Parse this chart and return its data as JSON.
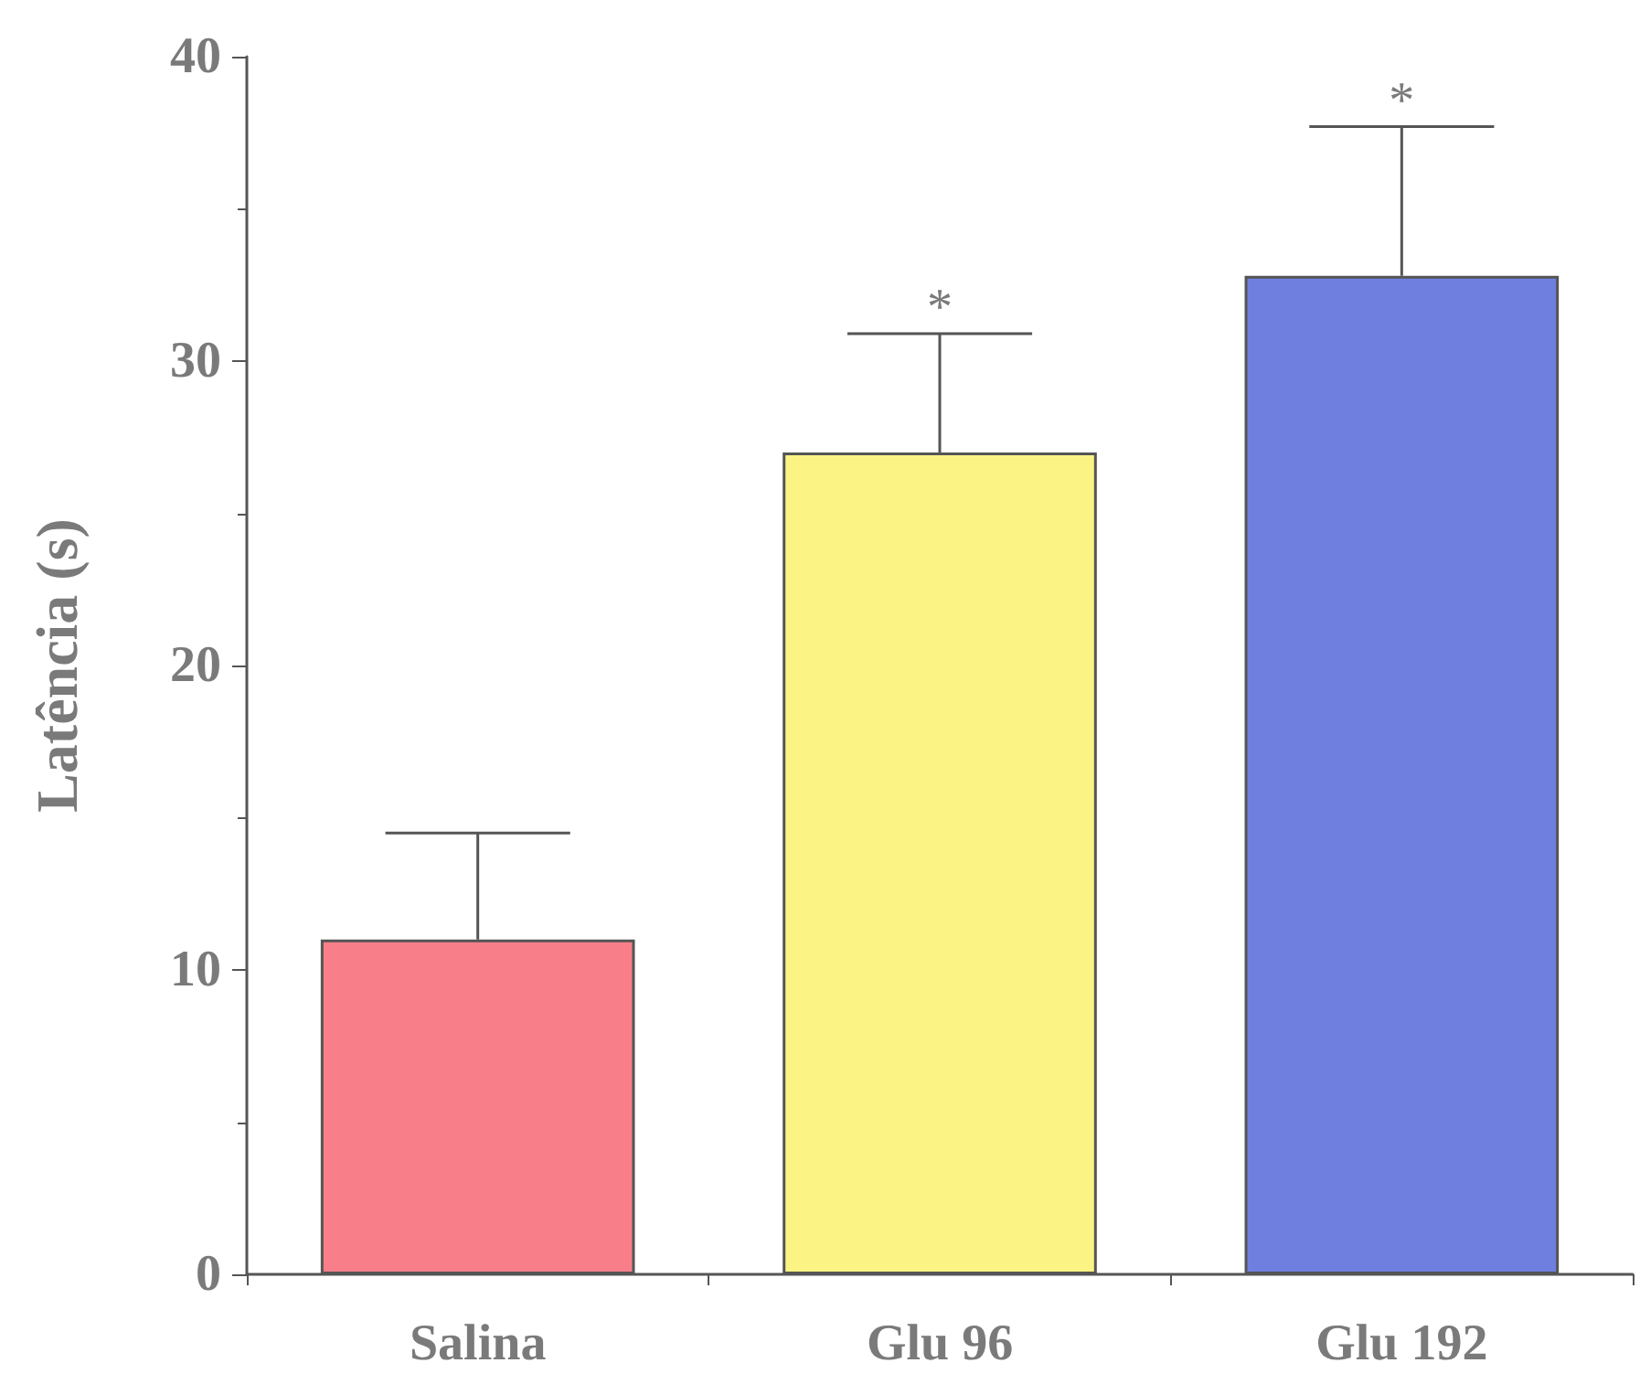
{
  "chart_data": {
    "type": "bar",
    "ylabel": "Latência (s)",
    "categories": [
      "Salina",
      "Glu 96",
      "Glu 192"
    ],
    "values": [
      11,
      27,
      32.8
    ],
    "colors": [
      "#f87f8a",
      "#fbf383",
      "#6f7fe0"
    ],
    "errors": [
      [
        11,
        14.5
      ],
      [
        27,
        30.9
      ],
      [
        32.8,
        37.7
      ]
    ],
    "ylim": [
      0,
      40
    ],
    "yticks": [
      0,
      10,
      20,
      30,
      40
    ],
    "grid": false,
    "annotations": [
      "*",
      "*"
    ]
  }
}
